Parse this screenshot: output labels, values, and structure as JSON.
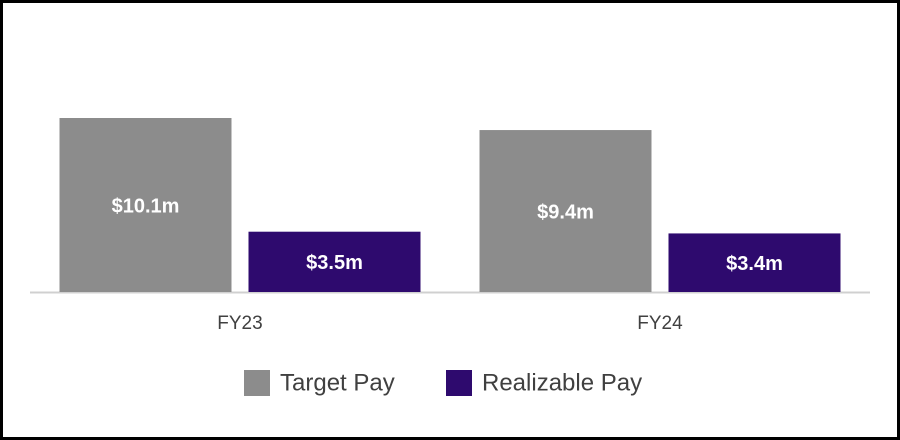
{
  "chart_data": {
    "type": "bar",
    "categories": [
      "FY23",
      "FY24"
    ],
    "series": [
      {
        "name": "Target Pay",
        "color": "#8c8c8c",
        "values": [
          10.1,
          9.4
        ],
        "value_labels": [
          "$10.1m",
          "$9.4m"
        ]
      },
      {
        "name": "Realizable Pay",
        "color": "#2e0a6e",
        "values": [
          3.5,
          3.4
        ],
        "value_labels": [
          "$3.5m",
          "$3.4m"
        ]
      }
    ],
    "legend": "bottom"
  }
}
